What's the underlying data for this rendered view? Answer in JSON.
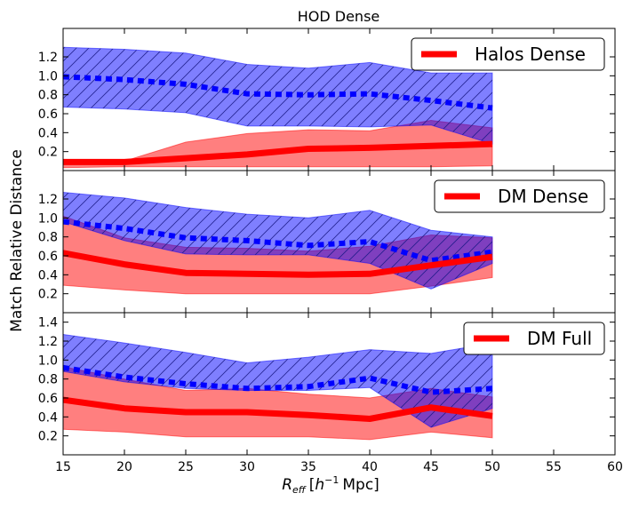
{
  "figure": {
    "title": "HOD Dense",
    "ylabel": "Match Relative Distance",
    "xlabel": "R_eff [h^-1 Mpc]",
    "xlabel_main": "R",
    "xlabel_sub": "eff",
    "xlabel_units_open": "[",
    "xlabel_units_h": "h",
    "xlabel_units_exp": "−1",
    "xlabel_units_rest": "Mpc]"
  },
  "colors": {
    "blue": "#0000ff",
    "red": "#ff0000",
    "blue_fill": "#0000ff",
    "red_fill": "#ff0000"
  },
  "chart_data": [
    {
      "type": "line",
      "legend": "Halos Dense",
      "legend_position": "upper-right",
      "xlim": [
        15,
        60
      ],
      "ylim": [
        0,
        1.5
      ],
      "yticks": [
        "0.2",
        "0.4",
        "0.6",
        "0.8",
        "1.0",
        "1.2"
      ],
      "x": [
        15,
        20,
        25,
        30,
        35,
        40,
        45,
        50
      ],
      "blue_mean": [
        0.99,
        0.96,
        0.91,
        0.81,
        0.8,
        0.81,
        0.74,
        0.66
      ],
      "blue_upper": [
        1.3,
        1.28,
        1.24,
        1.12,
        1.08,
        1.14,
        1.03,
        1.03
      ],
      "blue_lower": [
        0.67,
        0.65,
        0.61,
        0.47,
        0.47,
        0.46,
        0.48,
        0.28
      ],
      "red_mean": [
        0.09,
        0.09,
        0.13,
        0.17,
        0.23,
        0.24,
        0.26,
        0.28
      ],
      "red_upper": [
        0.1,
        0.1,
        0.3,
        0.39,
        0.43,
        0.42,
        0.53,
        0.45
      ],
      "red_lower": [
        0.03,
        0.04,
        0.04,
        0.04,
        0.04,
        0.04,
        0.04,
        0.05
      ]
    },
    {
      "type": "line",
      "legend": "DM Dense",
      "legend_position": "upper-right",
      "xlim": [
        15,
        60
      ],
      "ylim": [
        0,
        1.5
      ],
      "yticks": [
        "0.2",
        "0.4",
        "0.6",
        "0.8",
        "1.0",
        "1.2"
      ],
      "x": [
        15,
        20,
        25,
        30,
        35,
        40,
        45,
        50
      ],
      "blue_mean": [
        0.96,
        0.89,
        0.79,
        0.76,
        0.71,
        0.75,
        0.55,
        0.64
      ],
      "blue_upper": [
        1.27,
        1.21,
        1.11,
        1.04,
        1.0,
        1.08,
        0.87,
        0.8
      ],
      "blue_lower": [
        0.96,
        0.76,
        0.62,
        0.61,
        0.61,
        0.52,
        0.25,
        0.52
      ],
      "red_mean": [
        0.63,
        0.51,
        0.42,
        0.41,
        0.4,
        0.41,
        0.5,
        0.59
      ],
      "red_upper": [
        1.02,
        0.79,
        0.69,
        0.68,
        0.65,
        0.7,
        0.82,
        0.79
      ],
      "red_lower": [
        0.29,
        0.24,
        0.2,
        0.2,
        0.2,
        0.2,
        0.28,
        0.37
      ]
    },
    {
      "type": "line",
      "legend": "DM Full",
      "legend_position": "upper-right",
      "xlim": [
        15,
        60
      ],
      "ylim": [
        0,
        1.5
      ],
      "yticks": [
        "0.2",
        "0.4",
        "0.6",
        "0.8",
        "1.0",
        "1.2",
        "1.4"
      ],
      "xticks": [
        "15",
        "20",
        "25",
        "30",
        "35",
        "40",
        "45",
        "50",
        "55",
        "60"
      ],
      "x": [
        15,
        20,
        25,
        30,
        35,
        40,
        45,
        50
      ],
      "blue_mean": [
        0.92,
        0.82,
        0.75,
        0.7,
        0.72,
        0.81,
        0.66,
        0.7
      ],
      "blue_upper": [
        1.27,
        1.18,
        1.08,
        0.97,
        1.03,
        1.11,
        1.07,
        1.18
      ],
      "blue_lower": [
        0.88,
        0.77,
        0.7,
        0.68,
        0.68,
        0.71,
        0.29,
        0.49
      ],
      "red_mean": [
        0.58,
        0.49,
        0.45,
        0.45,
        0.42,
        0.38,
        0.5,
        0.41
      ],
      "red_upper": [
        0.93,
        0.8,
        0.68,
        0.7,
        0.64,
        0.6,
        0.7,
        0.61
      ],
      "red_lower": [
        0.27,
        0.24,
        0.19,
        0.19,
        0.19,
        0.16,
        0.24,
        0.18
      ]
    }
  ]
}
